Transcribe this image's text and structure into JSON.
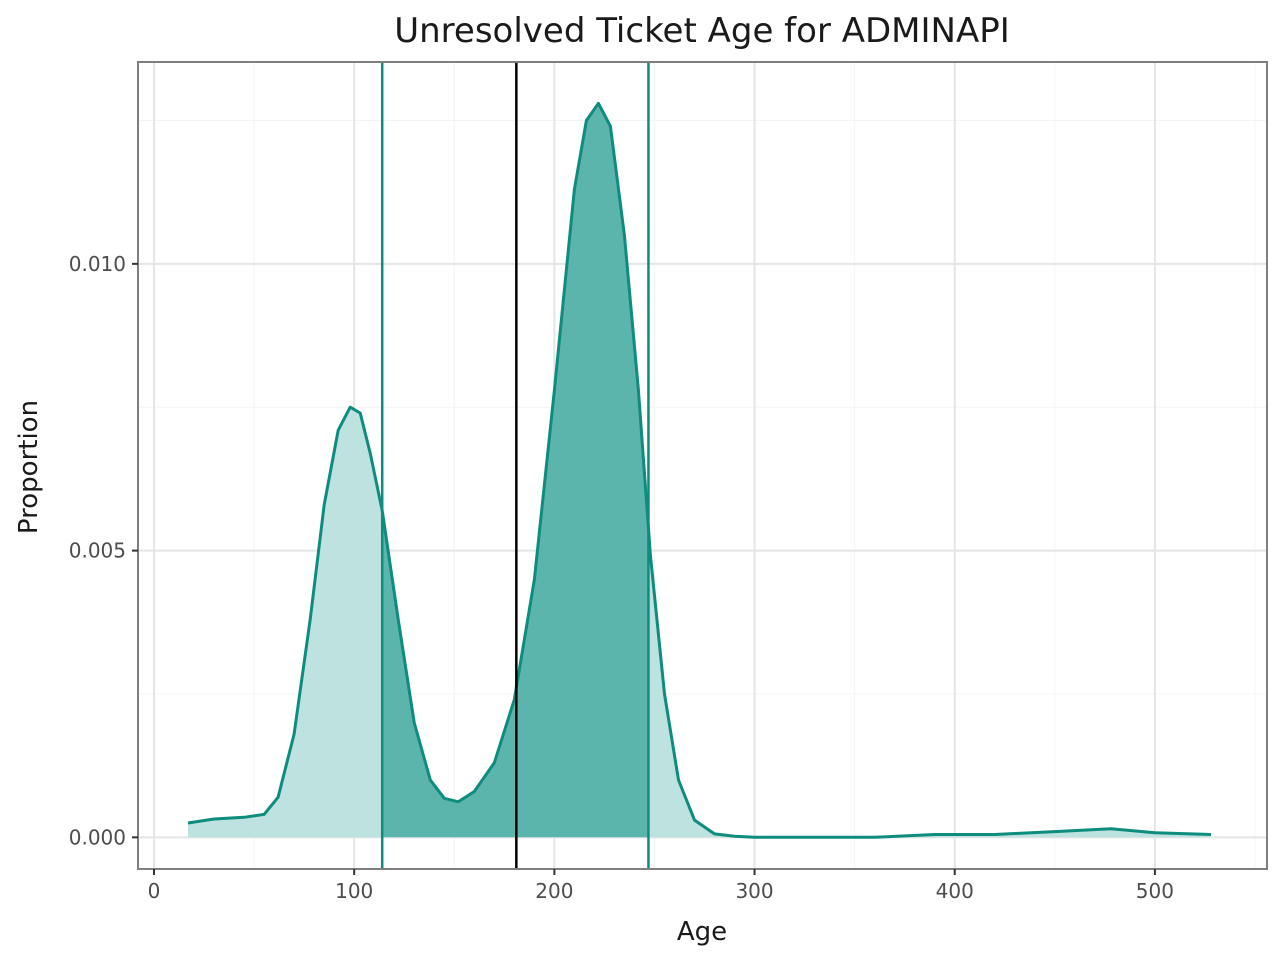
{
  "chart_data": {
    "type": "area",
    "title": "Unresolved Ticket Age for ADMINAPI",
    "xlabel": "Age",
    "ylabel": "Proportion",
    "xlim": [
      -8,
      556
    ],
    "ylim": [
      -0.000552,
      0.01352
    ],
    "x_ticks": [
      0,
      100,
      200,
      300,
      400,
      500
    ],
    "x_tick_labels": [
      "0",
      "100",
      "200",
      "300",
      "400",
      "500"
    ],
    "y_ticks": [
      0.0,
      0.005,
      0.01
    ],
    "y_tick_labels": [
      "0.000",
      "0.005",
      "0.010"
    ],
    "grid": true,
    "legend": "none",
    "series": [
      {
        "x": [
          17,
          30,
          45,
          55,
          62,
          70,
          78,
          85,
          92,
          98,
          103,
          108,
          114,
          122,
          130,
          138,
          145,
          152,
          160,
          170,
          180,
          190,
          200,
          210,
          216,
          222,
          228,
          235,
          242,
          248,
          255,
          262,
          270,
          280,
          290,
          300,
          330,
          360,
          390,
          420,
          450,
          478,
          500,
          528
        ],
        "y": [
          0.00025,
          0.00032,
          0.00035,
          0.0004,
          0.0007,
          0.0018,
          0.0038,
          0.0058,
          0.0071,
          0.0075,
          0.0074,
          0.0067,
          0.0057,
          0.0038,
          0.002,
          0.001,
          0.00068,
          0.00062,
          0.0008,
          0.0013,
          0.0024,
          0.0045,
          0.0078,
          0.0113,
          0.0125,
          0.0128,
          0.0124,
          0.0105,
          0.0078,
          0.0049,
          0.0025,
          0.001,
          0.0003,
          6e-05,
          2e-05,
          0.0,
          0.0,
          0.0,
          5e-05,
          5e-05,
          0.0001,
          0.00015,
          8e-05,
          5e-05
        ]
      }
    ],
    "shaded_interval": [
      114,
      247
    ],
    "vertical_lines": [
      {
        "x": 114,
        "color": "#0e8c7d"
      },
      {
        "x": 181,
        "color": "#000000"
      },
      {
        "x": 247,
        "color": "#0e8c7d"
      }
    ],
    "colors": {
      "curve": "#0e8c7d",
      "fill_outer": "#bde2e0",
      "fill_inner": "#5bb5ad",
      "panel_border": "#7f7f7f",
      "grid_major": "#e5e5e5",
      "grid_minor": "#f4f4f4"
    }
  }
}
